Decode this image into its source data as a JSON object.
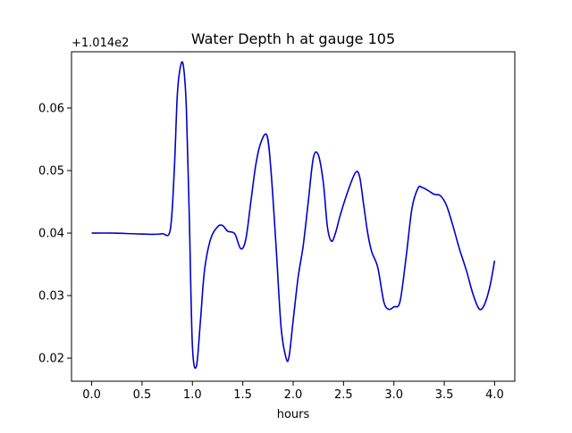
{
  "chart_data": {
    "type": "line",
    "title": "Water Depth h at gauge 105",
    "xlabel": "hours",
    "ylabel": "",
    "offset_label": "+1.014e2",
    "xlim": [
      -0.2,
      4.2
    ],
    "ylim": [
      0.0163,
      0.069
    ],
    "xticks": [
      0.0,
      0.5,
      1.0,
      1.5,
      2.0,
      2.5,
      3.0,
      3.5,
      4.0
    ],
    "xtick_labels": [
      "0.0",
      "0.5",
      "1.0",
      "1.5",
      "2.0",
      "2.5",
      "3.0",
      "3.5",
      "4.0"
    ],
    "yticks": [
      0.02,
      0.03,
      0.04,
      0.05,
      0.06
    ],
    "ytick_labels": [
      "0.02",
      "0.03",
      "0.04",
      "0.05",
      "0.06"
    ],
    "grid": false,
    "legend": "none",
    "series": [
      {
        "color": "#0000cc",
        "x": [
          0.0,
          0.2,
          0.4,
          0.6,
          0.7,
          0.78,
          0.82,
          0.85,
          0.88,
          0.91,
          0.94,
          0.97,
          1.0,
          1.04,
          1.08,
          1.12,
          1.18,
          1.25,
          1.3,
          1.35,
          1.42,
          1.48,
          1.53,
          1.58,
          1.63,
          1.68,
          1.74,
          1.78,
          1.83,
          1.88,
          1.93,
          1.96,
          2.0,
          2.05,
          2.1,
          2.15,
          2.2,
          2.25,
          2.3,
          2.34,
          2.38,
          2.42,
          2.47,
          2.55,
          2.62,
          2.66,
          2.7,
          2.74,
          2.78,
          2.84,
          2.9,
          2.95,
          3.0,
          3.06,
          3.12,
          3.18,
          3.24,
          3.28,
          3.34,
          3.4,
          3.46,
          3.52,
          3.58,
          3.65,
          3.72,
          3.78,
          3.84,
          3.88,
          3.92,
          3.96,
          4.0
        ],
        "y": [
          0.04,
          0.04,
          0.0399,
          0.0398,
          0.0399,
          0.0405,
          0.05,
          0.062,
          0.0665,
          0.0668,
          0.06,
          0.042,
          0.022,
          0.0187,
          0.026,
          0.034,
          0.039,
          0.041,
          0.0412,
          0.0403,
          0.0399,
          0.0375,
          0.039,
          0.045,
          0.051,
          0.0545,
          0.0556,
          0.05,
          0.038,
          0.025,
          0.02,
          0.0203,
          0.026,
          0.033,
          0.038,
          0.045,
          0.052,
          0.0525,
          0.048,
          0.041,
          0.0387,
          0.04,
          0.043,
          0.047,
          0.0497,
          0.049,
          0.0445,
          0.04,
          0.037,
          0.0345,
          0.029,
          0.0278,
          0.0282,
          0.029,
          0.036,
          0.044,
          0.0472,
          0.0473,
          0.0468,
          0.0462,
          0.046,
          0.0445,
          0.0415,
          0.0375,
          0.034,
          0.0305,
          0.028,
          0.028,
          0.0295,
          0.032,
          0.0356
        ]
      }
    ]
  }
}
